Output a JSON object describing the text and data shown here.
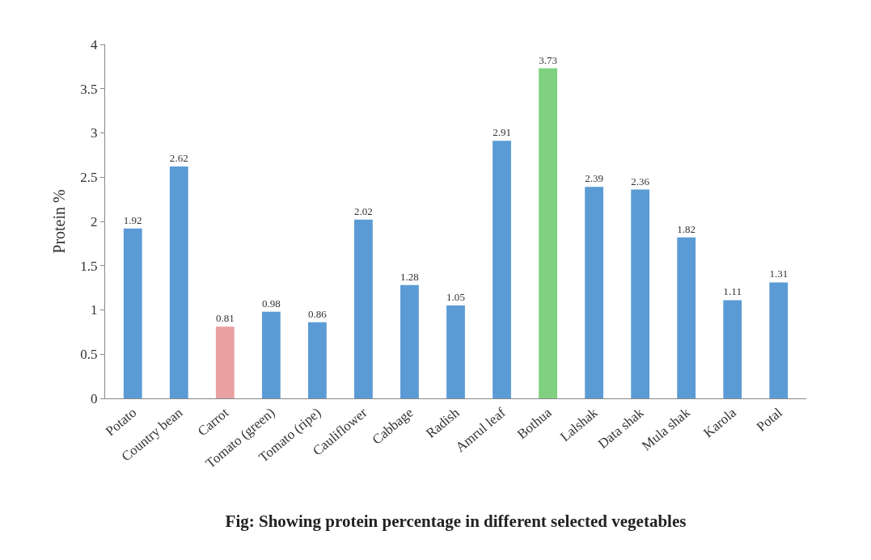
{
  "chart_data": {
    "type": "bar",
    "title": "Fig: Showing protein percentage in different selected vegetables",
    "ylabel": "Protein %",
    "categories": [
      "Potato",
      "Country bean",
      "Carrot",
      "Tomato (green)",
      "Tomato (ripe)",
      "Cauliflower",
      "Cabbage",
      "Radish",
      "Amrul leaf",
      "Bothua",
      "Lalshak",
      "Data shak",
      "Mula shak",
      "Karola",
      "Potal"
    ],
    "values": [
      1.92,
      2.62,
      0.81,
      0.98,
      0.86,
      2.02,
      1.28,
      1.05,
      2.91,
      3.73,
      2.39,
      2.36,
      1.82,
      1.11,
      1.31
    ],
    "colors": [
      "#5b9bd5",
      "#5b9bd5",
      "#e8a0a0",
      "#5b9bd5",
      "#5b9bd5",
      "#5b9bd5",
      "#5b9bd5",
      "#5b9bd5",
      "#5b9bd5",
      "#7fd07f",
      "#5b9bd5",
      "#5b9bd5",
      "#5b9bd5",
      "#5b9bd5",
      "#5b9bd5"
    ],
    "ylim": [
      0,
      4
    ],
    "yticks": [
      0,
      0.5,
      1,
      1.5,
      2,
      2.5,
      3,
      3.5,
      4
    ],
    "grid": false,
    "data_labels": true
  }
}
